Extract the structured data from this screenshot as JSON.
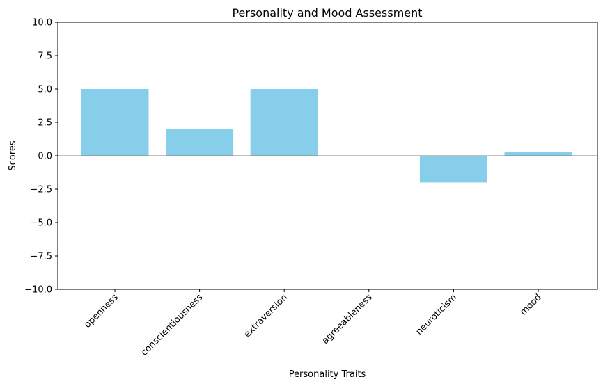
{
  "chart_data": {
    "type": "bar",
    "title": "Personality and Mood Assessment",
    "xlabel": "Personality Traits",
    "ylabel": "Scores",
    "categories": [
      "openness",
      "conscientiousness",
      "extraversion",
      "agreeableness",
      "neuroticism",
      "mood"
    ],
    "values": [
      5,
      2,
      5,
      0,
      -2,
      0.3
    ],
    "ylim": [
      -10,
      10
    ],
    "yticks": [
      "−10.0",
      "−7.5",
      "−5.0",
      "−2.5",
      "0.0",
      "2.5",
      "5.0",
      "7.5",
      "10.0"
    ],
    "ytick_values": [
      -10,
      -7.5,
      -5,
      -2.5,
      0,
      2.5,
      5,
      7.5,
      10
    ],
    "bar_color": "#87CEEB",
    "zero_line_color": "#808080",
    "grid": false,
    "x_tick_rotation_deg": 45
  }
}
